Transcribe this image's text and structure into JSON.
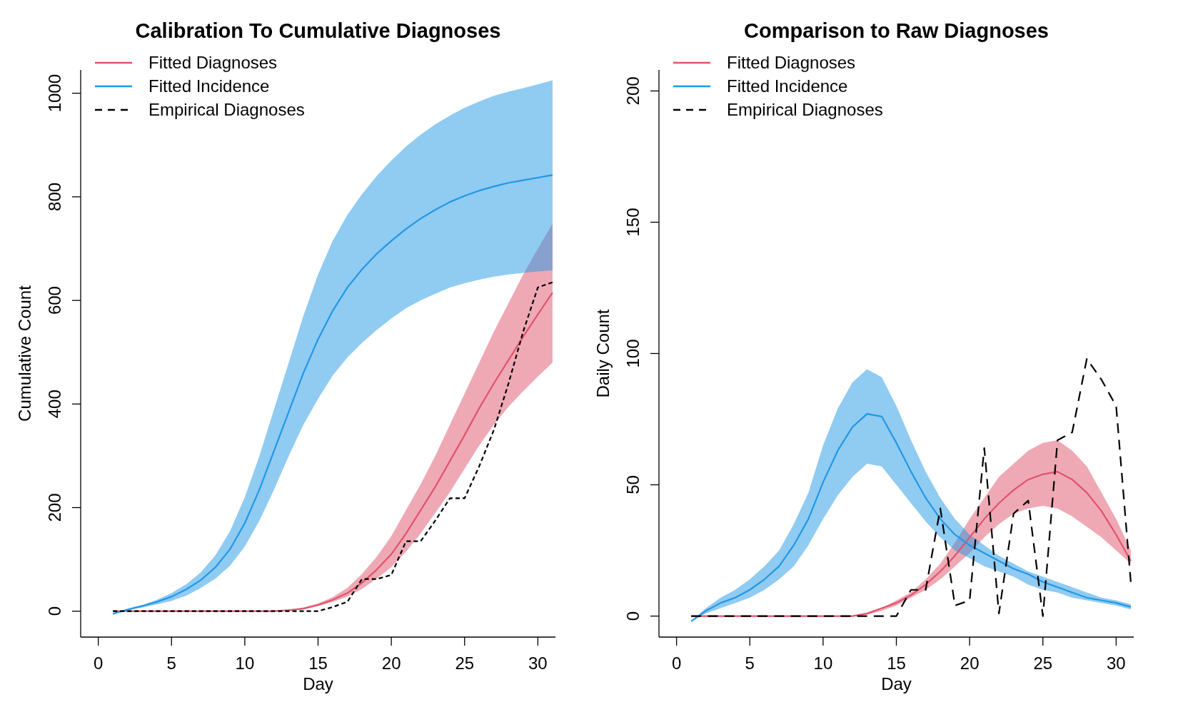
{
  "chart_data": [
    {
      "type": "line",
      "title": "Calibration To Cumulative Diagnoses",
      "xlabel": "Day",
      "ylabel": "Cumulative Count",
      "x": [
        1,
        2,
        3,
        4,
        5,
        6,
        7,
        8,
        9,
        10,
        11,
        12,
        13,
        14,
        15,
        16,
        17,
        18,
        19,
        20,
        21,
        22,
        23,
        24,
        25,
        26,
        27,
        28,
        29,
        30,
        31
      ],
      "xlim": [
        -1.2,
        31.2
      ],
      "xticks": [
        0,
        5,
        10,
        15,
        20,
        25,
        30
      ],
      "ylim": [
        -50,
        1045
      ],
      "yticks": [
        0,
        200,
        400,
        600,
        800,
        1000
      ],
      "legend": "top left",
      "grid": false,
      "series": [
        {
          "name": "Fitted Diagnoses",
          "color": "#df536b",
          "line_style": "solid",
          "values": [
            0,
            0,
            0,
            0,
            0,
            0,
            0,
            0,
            0,
            0,
            0,
            0,
            2,
            5,
            12,
            22,
            35,
            55,
            80,
            110,
            150,
            195,
            240,
            290,
            340,
            392,
            440,
            485,
            530,
            573,
            615
          ],
          "lower": [
            0,
            0,
            0,
            0,
            0,
            0,
            0,
            0,
            0,
            0,
            0,
            0,
            1,
            4,
            10,
            18,
            28,
            43,
            63,
            85,
            115,
            150,
            190,
            230,
            275,
            320,
            360,
            395,
            425,
            453,
            480
          ],
          "upper": [
            0,
            0,
            0,
            0,
            0,
            0,
            0,
            0,
            0,
            0,
            0,
            1,
            3,
            7,
            15,
            27,
            45,
            72,
            105,
            145,
            195,
            245,
            300,
            360,
            420,
            480,
            540,
            595,
            650,
            700,
            748
          ]
        },
        {
          "name": "Fitted Incidence",
          "color": "#2297e6",
          "line_style": "solid",
          "values": [
            -5,
            3,
            10,
            18,
            28,
            42,
            60,
            85,
            120,
            170,
            235,
            310,
            385,
            460,
            525,
            580,
            625,
            660,
            690,
            715,
            738,
            758,
            775,
            790,
            802,
            812,
            820,
            827,
            832,
            837,
            842
          ],
          "lower": [
            -5,
            2,
            7,
            13,
            20,
            30,
            45,
            63,
            88,
            125,
            175,
            235,
            300,
            360,
            410,
            455,
            490,
            518,
            543,
            565,
            585,
            600,
            613,
            625,
            633,
            640,
            646,
            650,
            653,
            656,
            658
          ],
          "upper": [
            -5,
            5,
            12,
            22,
            35,
            52,
            75,
            108,
            155,
            220,
            300,
            390,
            480,
            570,
            650,
            715,
            765,
            805,
            840,
            870,
            897,
            920,
            940,
            957,
            972,
            984,
            995,
            1003,
            1010,
            1017,
            1025
          ]
        },
        {
          "name": "Empirical Diagnoses",
          "color": "#000000",
          "line_style": "dashed",
          "values": [
            0,
            0,
            0,
            0,
            0,
            0,
            0,
            0,
            0,
            0,
            0,
            0,
            0,
            0,
            0,
            8,
            18,
            62,
            62,
            70,
            135,
            135,
            175,
            218,
            218,
            280,
            350,
            440,
            540,
            625,
            635
          ]
        }
      ]
    },
    {
      "type": "line",
      "title": "Comparison to Raw Diagnoses",
      "xlabel": "Day",
      "ylabel": "Daily Count",
      "x": [
        1,
        2,
        3,
        4,
        5,
        6,
        7,
        8,
        9,
        10,
        11,
        12,
        13,
        14,
        15,
        16,
        17,
        18,
        19,
        20,
        21,
        22,
        23,
        24,
        25,
        26,
        27,
        28,
        29,
        30,
        31
      ],
      "xlim": [
        -1.2,
        31.2
      ],
      "xticks": [
        0,
        5,
        10,
        15,
        20,
        25,
        30
      ],
      "ylim": [
        -8,
        208
      ],
      "yticks": [
        0,
        50,
        100,
        150,
        200
      ],
      "legend": "top left",
      "grid": false,
      "series": [
        {
          "name": "Fitted Diagnoses",
          "color": "#df536b",
          "line_style": "solid",
          "values": [
            0,
            0,
            0,
            0,
            0,
            0,
            0,
            0,
            0,
            0,
            0,
            0,
            1,
            3,
            5,
            8,
            12,
            17,
            23,
            30,
            37,
            43,
            48,
            52,
            54,
            55,
            52,
            47,
            40,
            31,
            21
          ],
          "lower": [
            0,
            0,
            0,
            0,
            0,
            0,
            0,
            0,
            0,
            0,
            0,
            0,
            0.5,
            2,
            4,
            7,
            10,
            14,
            19,
            24,
            30,
            35,
            39,
            41,
            42,
            41,
            38,
            34,
            30,
            25,
            20
          ],
          "upper": [
            0,
            0,
            0,
            0,
            0,
            0,
            0,
            0,
            0,
            0,
            0,
            0,
            1,
            3,
            6,
            9,
            14,
            20,
            28,
            37,
            45,
            53,
            58,
            63,
            66,
            67,
            63,
            57,
            47,
            37,
            25
          ]
        },
        {
          "name": "Fitted Incidence",
          "color": "#2297e6",
          "line_style": "solid",
          "values": [
            -2,
            2,
            5,
            7,
            10,
            14,
            19,
            27,
            37,
            51,
            63,
            72,
            77,
            76,
            66,
            55,
            45,
            37,
            31,
            27,
            24,
            21,
            18,
            16,
            13,
            11,
            9,
            7,
            6,
            5,
            3.5
          ],
          "lower": [
            -2,
            1,
            3,
            5,
            7,
            10,
            14,
            19,
            27,
            37,
            46,
            53,
            58,
            57,
            50,
            43,
            36,
            30,
            25,
            22,
            19,
            17,
            15,
            12,
            10,
            9,
            7,
            6,
            5,
            4,
            2.5
          ],
          "upper": [
            -2,
            3,
            7,
            10,
            14,
            19,
            25,
            35,
            47,
            65,
            79,
            89,
            94,
            91,
            80,
            67,
            55,
            45,
            37,
            31,
            27,
            23,
            20,
            17,
            15,
            13,
            11,
            9,
            7,
            6,
            4.5
          ]
        },
        {
          "name": "Empirical Diagnoses",
          "color": "#000000",
          "line_style": "dashed",
          "values": [
            0,
            0,
            0,
            0,
            0,
            0,
            0,
            0,
            0,
            0,
            0,
            0,
            0,
            0,
            0,
            10,
            10,
            41,
            4,
            6,
            64,
            1,
            39,
            44,
            0,
            67,
            70,
            98,
            90,
            80,
            13
          ]
        }
      ]
    }
  ]
}
